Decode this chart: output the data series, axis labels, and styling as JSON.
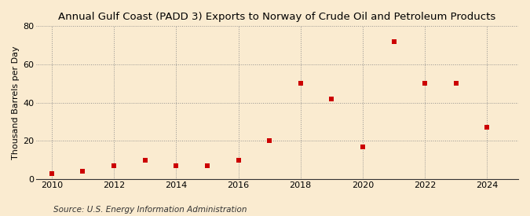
{
  "title": "Annual Gulf Coast (PADD 3) Exports to Norway of Crude Oil and Petroleum Products",
  "ylabel": "Thousand Barrels per Day",
  "source": "Source: U.S. Energy Information Administration",
  "background_color": "#faebd0",
  "plot_bg_color": "#faebd0",
  "years": [
    2010,
    2011,
    2012,
    2013,
    2014,
    2015,
    2016,
    2017,
    2018,
    2019,
    2020,
    2021,
    2022,
    2023,
    2024
  ],
  "values": [
    3,
    4,
    7,
    10,
    7,
    7,
    10,
    20,
    50,
    42,
    17,
    72,
    50,
    50,
    27
  ],
  "marker_color": "#cc0000",
  "marker_size": 18,
  "ylim": [
    0,
    80
  ],
  "yticks": [
    0,
    20,
    40,
    60,
    80
  ],
  "xlim": [
    2009.5,
    2025.0
  ],
  "xticks": [
    2010,
    2012,
    2014,
    2016,
    2018,
    2020,
    2022,
    2024
  ],
  "title_fontsize": 9.5,
  "axis_fontsize": 8,
  "source_fontsize": 7.5,
  "ylabel_fontsize": 8
}
